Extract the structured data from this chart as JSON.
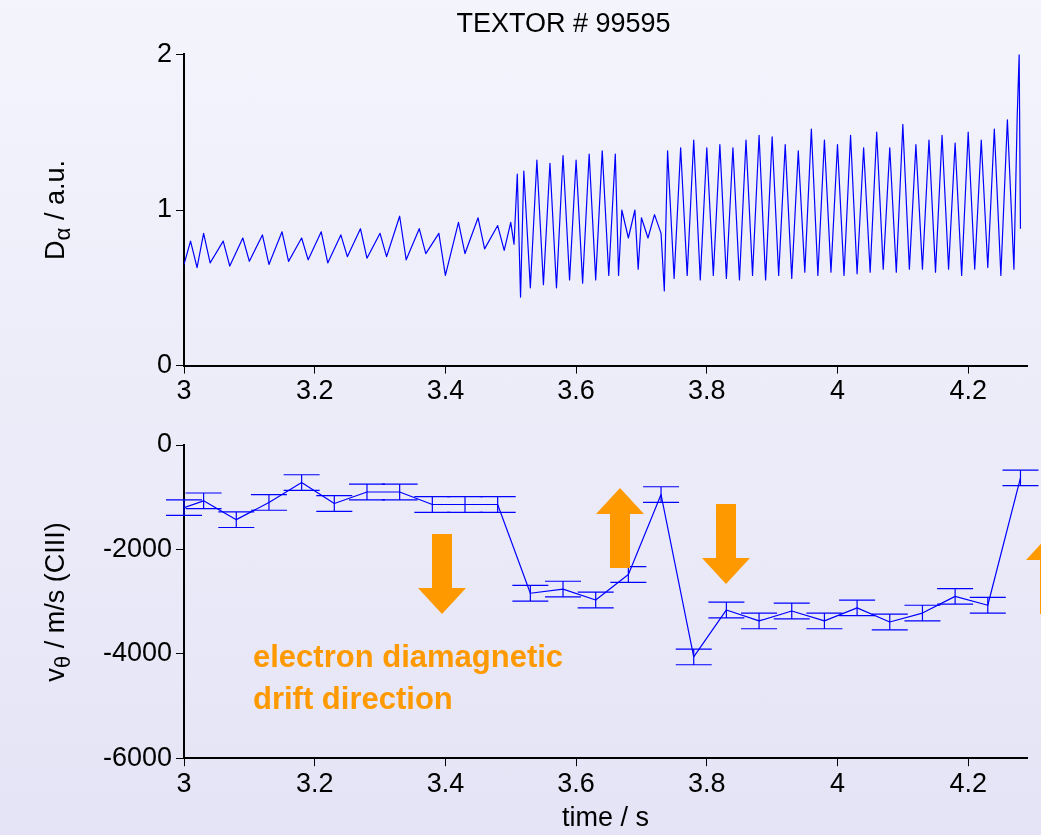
{
  "chart_data": [
    {
      "type": "line",
      "title": "TEXTOR # 99595",
      "ylabel": "D$_{α}$ / a.u.",
      "xlim": [
        3,
        4.29
      ],
      "xticks": [
        3,
        3.2,
        3.4,
        3.6,
        3.8,
        4,
        4.2
      ],
      "ylim": [
        0,
        2
      ],
      "yticks": [
        0,
        1,
        2
      ],
      "grid": false,
      "legend": false,
      "series": [
        {
          "color": "#0000ff",
          "x": [
            3.0,
            3.01,
            3.02,
            3.03,
            3.04,
            3.06,
            3.07,
            3.09,
            3.1,
            3.12,
            3.13,
            3.15,
            3.16,
            3.18,
            3.19,
            3.21,
            3.22,
            3.24,
            3.25,
            3.27,
            3.28,
            3.3,
            3.31,
            3.33,
            3.34,
            3.36,
            3.37,
            3.39,
            3.4,
            3.42,
            3.43,
            3.45,
            3.46,
            3.48,
            3.49,
            3.5,
            3.505,
            3.51,
            3.515,
            3.52,
            3.53,
            3.54,
            3.55,
            3.56,
            3.57,
            3.58,
            3.59,
            3.6,
            3.61,
            3.62,
            3.63,
            3.64,
            3.65,
            3.66,
            3.665,
            3.67,
            3.68,
            3.69,
            3.695,
            3.7,
            3.71,
            3.72,
            3.73,
            3.735,
            3.74,
            3.75,
            3.76,
            3.77,
            3.78,
            3.79,
            3.8,
            3.81,
            3.82,
            3.83,
            3.84,
            3.85,
            3.86,
            3.87,
            3.88,
            3.89,
            3.9,
            3.91,
            3.92,
            3.93,
            3.94,
            3.95,
            3.96,
            3.97,
            3.98,
            3.99,
            4.0,
            4.01,
            4.02,
            4.03,
            4.04,
            4.05,
            4.06,
            4.07,
            4.08,
            4.09,
            4.1,
            4.11,
            4.12,
            4.13,
            4.14,
            4.15,
            4.16,
            4.17,
            4.18,
            4.19,
            4.2,
            4.21,
            4.22,
            4.23,
            4.24,
            4.25,
            4.26,
            4.27,
            4.275,
            4.278,
            4.28
          ],
          "values": [
            0.65,
            0.8,
            0.63,
            0.85,
            0.66,
            0.8,
            0.64,
            0.82,
            0.67,
            0.84,
            0.65,
            0.86,
            0.67,
            0.82,
            0.68,
            0.86,
            0.66,
            0.84,
            0.7,
            0.88,
            0.69,
            0.85,
            0.7,
            0.96,
            0.68,
            0.88,
            0.72,
            0.85,
            0.58,
            0.92,
            0.72,
            0.95,
            0.75,
            0.9,
            0.74,
            0.92,
            0.78,
            1.23,
            0.44,
            1.25,
            0.5,
            1.32,
            0.52,
            1.3,
            0.5,
            1.35,
            0.55,
            1.32,
            0.53,
            1.36,
            0.55,
            1.38,
            0.58,
            1.36,
            0.58,
            1.0,
            0.82,
            1.0,
            0.62,
            0.95,
            0.82,
            0.97,
            0.85,
            0.48,
            1.38,
            0.56,
            1.4,
            0.58,
            1.45,
            0.55,
            1.4,
            0.58,
            1.42,
            0.56,
            1.4,
            0.55,
            1.45,
            0.58,
            1.48,
            0.55,
            1.47,
            0.58,
            1.42,
            0.56,
            1.38,
            0.6,
            1.52,
            0.58,
            1.45,
            0.6,
            1.42,
            0.58,
            1.48,
            0.59,
            1.4,
            0.6,
            1.5,
            0.62,
            1.4,
            0.6,
            1.55,
            0.62,
            1.42,
            0.62,
            1.45,
            0.6,
            1.48,
            0.62,
            1.43,
            0.58,
            1.5,
            0.62,
            1.45,
            0.63,
            1.52,
            0.58,
            1.58,
            0.62,
            1.6,
            2.0,
            0.88
          ]
        }
      ]
    },
    {
      "type": "line",
      "xlabel": "time / s",
      "ylabel": "v$_{θ}$ / m/s (CIII)",
      "xlim": [
        3,
        4.29
      ],
      "xticks": [
        3,
        3.2,
        3.4,
        3.6,
        3.8,
        4,
        4.2
      ],
      "ylim": [
        -6000,
        0
      ],
      "yticks": [
        -6000,
        -4000,
        -2000,
        0
      ],
      "grid": false,
      "legend": false,
      "marker": "none",
      "annotations": [
        "electron diamagnetic drift direction"
      ],
      "series": [
        {
          "color": "#0000ff",
          "x": [
            3.0,
            3.03,
            3.08,
            3.13,
            3.18,
            3.23,
            3.28,
            3.33,
            3.38,
            3.43,
            3.48,
            3.53,
            3.58,
            3.63,
            3.68,
            3.73,
            3.78,
            3.83,
            3.88,
            3.93,
            3.98,
            4.03,
            4.08,
            4.13,
            4.18,
            4.23,
            4.28
          ],
          "values": [
            -1200,
            -1070,
            -1430,
            -1100,
            -720,
            -1120,
            -900,
            -900,
            -1140,
            -1140,
            -1140,
            -2840,
            -2760,
            -2970,
            -2480,
            -950,
            -4060,
            -3160,
            -3370,
            -3180,
            -3370,
            -3120,
            -3390,
            -3220,
            -2900,
            -3070,
            -630
          ],
          "errors": [
            150,
            150,
            150,
            150,
            150,
            150,
            150,
            150,
            150,
            150,
            150,
            150,
            150,
            150,
            150,
            150,
            150,
            150,
            150,
            150,
            150,
            150,
            150,
            150,
            150,
            150,
            150
          ]
        }
      ]
    }
  ]
}
